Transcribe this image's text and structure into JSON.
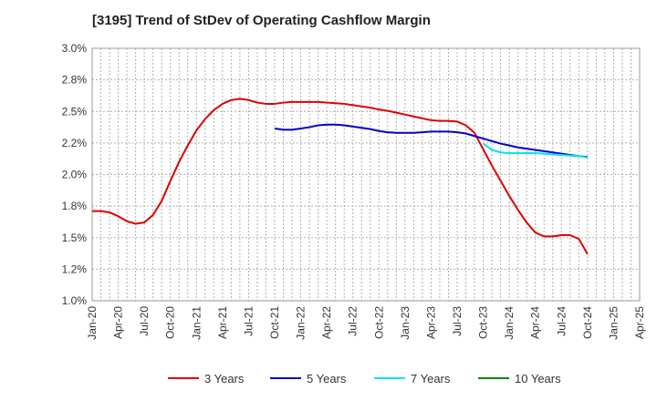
{
  "chart_data": {
    "type": "line",
    "title": "[3195]  Trend of StDev of Operating Cashflow Margin",
    "xlabel": "",
    "ylabel": "",
    "ylim": [
      1.0,
      3.0
    ],
    "y_ticks": [
      "1.0%",
      "1.2%",
      "1.5%",
      "1.8%",
      "2.0%",
      "2.2%",
      "2.5%",
      "2.8%",
      "3.0%"
    ],
    "x_ticks": [
      "Jan-20",
      "Apr-20",
      "Jul-20",
      "Oct-20",
      "Jan-21",
      "Apr-21",
      "Jul-21",
      "Oct-21",
      "Jan-22",
      "Apr-22",
      "Jul-22",
      "Oct-22",
      "Jan-23",
      "Apr-23",
      "Jul-23",
      "Oct-23",
      "Jan-24",
      "Apr-24",
      "Jul-24",
      "Oct-24",
      "Jan-25",
      "Apr-25"
    ],
    "x_range": [
      "2020-01",
      "2025-04"
    ],
    "grid": true,
    "legend_position": "bottom",
    "colors": {
      "3 Years": "#dd0000",
      "5 Years": "#0000cc",
      "7 Years": "#00e5ee",
      "10 Years": "#008800"
    },
    "series": [
      {
        "name": "3 Years",
        "x": [
          "2020-01",
          "2020-02",
          "2020-03",
          "2020-04",
          "2020-05",
          "2020-06",
          "2020-07",
          "2020-08",
          "2020-09",
          "2020-10",
          "2020-11",
          "2020-12",
          "2021-01",
          "2021-02",
          "2021-03",
          "2021-04",
          "2021-05",
          "2021-06",
          "2021-07",
          "2021-08",
          "2021-09",
          "2021-10",
          "2021-11",
          "2021-12",
          "2022-01",
          "2022-02",
          "2022-03",
          "2022-04",
          "2022-05",
          "2022-06",
          "2022-07",
          "2022-08",
          "2022-09",
          "2022-10",
          "2022-11",
          "2022-12",
          "2023-01",
          "2023-02",
          "2023-03",
          "2023-04",
          "2023-05",
          "2023-06",
          "2023-07",
          "2023-08",
          "2023-09",
          "2023-10",
          "2023-11",
          "2023-12",
          "2024-01",
          "2024-02",
          "2024-03",
          "2024-04",
          "2024-05",
          "2024-06",
          "2024-07",
          "2024-08",
          "2024-09",
          "2024-10"
        ],
        "values": [
          1.71,
          1.71,
          1.7,
          1.67,
          1.63,
          1.61,
          1.62,
          1.68,
          1.79,
          1.95,
          2.1,
          2.23,
          2.35,
          2.44,
          2.51,
          2.56,
          2.59,
          2.6,
          2.59,
          2.57,
          2.56,
          2.56,
          2.57,
          2.575,
          2.575,
          2.575,
          2.575,
          2.57,
          2.565,
          2.56,
          2.55,
          2.54,
          2.53,
          2.515,
          2.505,
          2.49,
          2.475,
          2.46,
          2.445,
          2.43,
          2.425,
          2.425,
          2.42,
          2.39,
          2.33,
          2.2,
          2.07,
          1.95,
          1.83,
          1.72,
          1.62,
          1.54,
          1.51,
          1.51,
          1.52,
          1.52,
          1.49,
          1.37
        ]
      },
      {
        "name": "5 Years",
        "x": [
          "2021-10",
          "2021-11",
          "2021-12",
          "2022-01",
          "2022-02",
          "2022-03",
          "2022-04",
          "2022-05",
          "2022-06",
          "2022-07",
          "2022-08",
          "2022-09",
          "2022-10",
          "2022-11",
          "2022-12",
          "2023-01",
          "2023-02",
          "2023-03",
          "2023-04",
          "2023-05",
          "2023-06",
          "2023-07",
          "2023-08",
          "2023-09",
          "2023-10",
          "2023-11",
          "2023-12",
          "2024-01",
          "2024-02",
          "2024-03",
          "2024-04",
          "2024-05",
          "2024-06",
          "2024-07",
          "2024-08",
          "2024-09",
          "2024-10"
        ],
        "values": [
          2.365,
          2.355,
          2.355,
          2.365,
          2.375,
          2.39,
          2.395,
          2.395,
          2.39,
          2.38,
          2.37,
          2.36,
          2.345,
          2.335,
          2.33,
          2.33,
          2.33,
          2.335,
          2.34,
          2.34,
          2.34,
          2.335,
          2.325,
          2.305,
          2.285,
          2.265,
          2.245,
          2.23,
          2.215,
          2.205,
          2.195,
          2.185,
          2.175,
          2.165,
          2.155,
          2.145,
          2.14
        ]
      },
      {
        "name": "7 Years",
        "x": [
          "2023-10",
          "2023-11",
          "2023-12",
          "2024-01",
          "2024-02",
          "2024-03",
          "2024-04",
          "2024-05",
          "2024-06",
          "2024-07",
          "2024-08",
          "2024-09",
          "2024-10"
        ],
        "values": [
          2.245,
          2.195,
          2.175,
          2.17,
          2.17,
          2.17,
          2.17,
          2.165,
          2.16,
          2.155,
          2.15,
          2.145,
          2.135
        ]
      },
      {
        "name": "10 Years",
        "x": [],
        "values": []
      }
    ]
  }
}
